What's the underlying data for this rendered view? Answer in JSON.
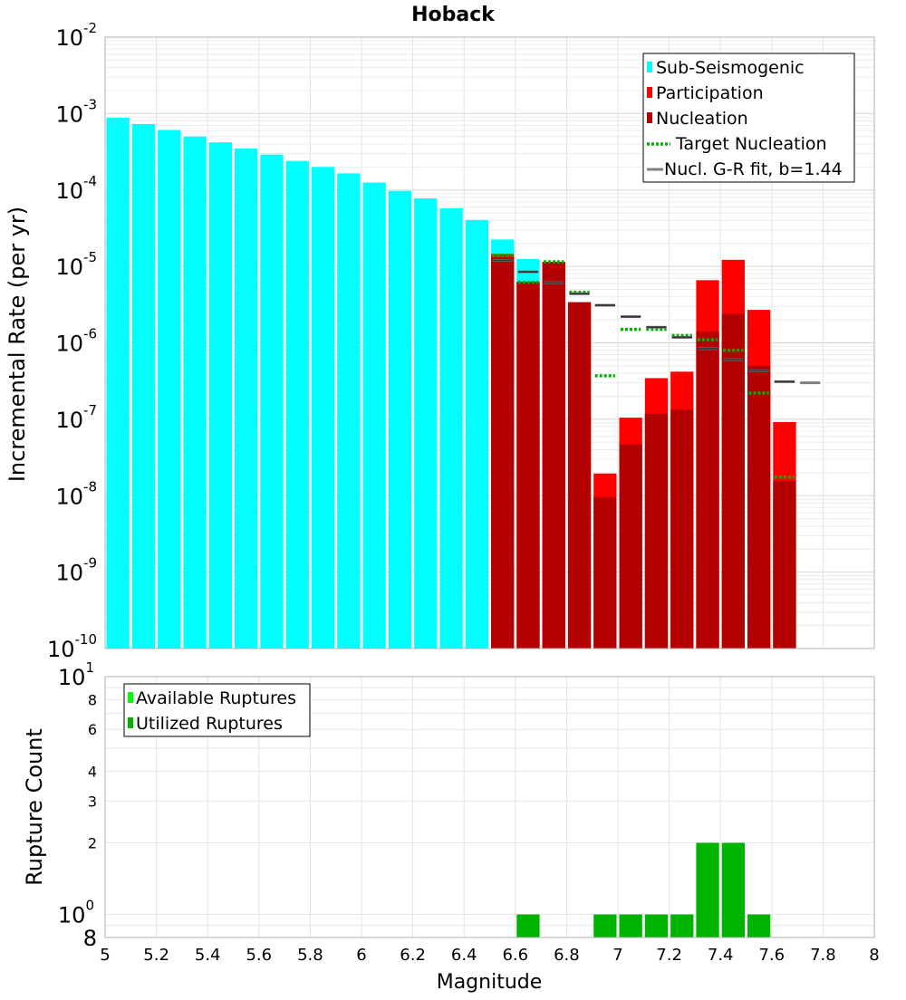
{
  "chart_data": [
    {
      "type": "bar",
      "title": "Hoback",
      "xlabel": "",
      "ylabel": "Incremental Rate (per yr)",
      "xlim": [
        5,
        8
      ],
      "ylim": [
        1e-10,
        0.01
      ],
      "yscale": "log",
      "grid": true,
      "legend_position": "top-right",
      "y_tick_labels": [
        {
          "value": 1e-10,
          "base": "10",
          "exp": "-10"
        },
        {
          "value": 1e-09,
          "base": "10",
          "exp": "-9"
        },
        {
          "value": 1e-08,
          "base": "10",
          "exp": "-8"
        },
        {
          "value": 1e-07,
          "base": "10",
          "exp": "-7"
        },
        {
          "value": 1e-06,
          "base": "10",
          "exp": "-6"
        },
        {
          "value": 1e-05,
          "base": "10",
          "exp": "-5"
        },
        {
          "value": 0.0001,
          "base": "10",
          "exp": "-4"
        },
        {
          "value": 0.001,
          "base": "10",
          "exp": "-3"
        },
        {
          "value": 0.01,
          "base": "10",
          "exp": "-2"
        }
      ],
      "bin_width": 0.1,
      "series": [
        {
          "name": "Sub-Seismogenic",
          "kind": "bar",
          "color": "#00ffff",
          "x": [
            5.05,
            5.15,
            5.25,
            5.35,
            5.45,
            5.55,
            5.65,
            5.75,
            5.85,
            5.95,
            6.05,
            6.15,
            6.25,
            6.35,
            6.45,
            6.55,
            6.65
          ],
          "values": [
            0.00088,
            0.00073,
            0.00061,
            0.0005,
            0.00042,
            0.00035,
            0.00029,
            0.00024,
            0.0002,
            0.000165,
            0.000125,
            9.75e-05,
            7.75e-05,
            5.75e-05,
            4.05e-05,
            2.25e-05,
            1.25e-05
          ]
        },
        {
          "name": "Participation",
          "kind": "bar",
          "color": "#ff0000",
          "x": [
            6.55,
            6.65,
            6.75,
            6.85,
            6.95,
            7.05,
            7.15,
            7.25,
            7.35,
            7.45,
            7.55,
            7.65
          ],
          "values": [
            1.45e-05,
            6.3e-06,
            1.15e-05,
            3.4e-06,
            1.95e-08,
            1.05e-07,
            3.45e-07,
            4.2e-07,
            6.6e-06,
            1.22e-05,
            2.7e-06,
            9.2e-08
          ]
        },
        {
          "name": "Nucleation",
          "kind": "bar",
          "color": "#b30000",
          "x": [
            6.55,
            6.65,
            6.75,
            6.85,
            6.95,
            7.05,
            7.15,
            7.25,
            7.35,
            7.45,
            7.55,
            7.65
          ],
          "values": [
            1.3e-05,
            6.2e-06,
            1.13e-05,
            3.4e-06,
            9.6e-09,
            4.7e-08,
            1.18e-07,
            1.33e-07,
            1.4e-06,
            2.4e-06,
            5e-07,
            1.55e-08
          ]
        },
        {
          "name": "Target Nucleation",
          "kind": "dashed-step",
          "color": "#00b300",
          "x": [
            6.55,
            6.65,
            6.75,
            6.85,
            6.95,
            7.05,
            7.15,
            7.25,
            7.35,
            7.45,
            7.55,
            7.65
          ],
          "values": [
            1.4e-05,
            6.2e-06,
            1.15e-05,
            4.6e-06,
            3.7e-07,
            1.5e-06,
            1.5e-06,
            1.25e-06,
            1.1e-06,
            8e-07,
            2.2e-07,
            1.75e-08
          ]
        },
        {
          "name": "Nucl. G-R fit, b=1.44",
          "kind": "step",
          "color": "#808080",
          "x": [
            6.55,
            6.65,
            6.75,
            6.85,
            6.95,
            7.05,
            7.15,
            7.25,
            7.35,
            7.45,
            7.55,
            7.65,
            7.75
          ],
          "values": [
            1.2e-05,
            8.5e-06,
            6.1e-06,
            4.4e-06,
            3.1e-06,
            2.2e-06,
            1.6e-06,
            1.18e-06,
            8.4e-07,
            6e-07,
            4.3e-07,
            3.1e-07,
            3e-07
          ]
        }
      ]
    },
    {
      "type": "bar",
      "title": "",
      "xlabel": "Magnitude",
      "ylabel": "Rupture Count",
      "xlim": [
        5,
        8
      ],
      "ylim": [
        0.8,
        10
      ],
      "yscale": "log",
      "grid": true,
      "legend_position": "top-left",
      "x_tick_labels": [
        "5",
        "5.2",
        "5.4",
        "5.6",
        "5.8",
        "6",
        "6.2",
        "6.4",
        "6.6",
        "6.8",
        "7",
        "7.2",
        "7.4",
        "7.6",
        "7.8",
        "8"
      ],
      "y_tick_labels": [
        {
          "value": 0.8,
          "base": "8",
          "exp": ""
        },
        {
          "value": 1,
          "base": "10",
          "exp": "0"
        },
        {
          "value": 2,
          "base": "2",
          "exp": ""
        },
        {
          "value": 3,
          "base": "3",
          "exp": ""
        },
        {
          "value": 4,
          "base": "4",
          "exp": ""
        },
        {
          "value": 6,
          "base": "6",
          "exp": ""
        },
        {
          "value": 8,
          "base": "8",
          "exp": ""
        },
        {
          "value": 10,
          "base": "10",
          "exp": "1"
        }
      ],
      "series": [
        {
          "name": "Available Ruptures",
          "kind": "bar",
          "color": "#00ff00",
          "x": [
            6.65,
            6.95,
            7.05,
            7.15,
            7.25,
            7.35,
            7.45,
            7.55
          ],
          "values": [
            1,
            1,
            1,
            1,
            1,
            2,
            2,
            1
          ]
        },
        {
          "name": "Utilized Ruptures",
          "kind": "bar",
          "color": "#00b300",
          "x": [
            6.65,
            6.95,
            7.05,
            7.15,
            7.25,
            7.35,
            7.45,
            7.55
          ],
          "values": [
            1,
            1,
            1,
            1,
            1,
            2,
            2,
            1
          ]
        }
      ]
    }
  ]
}
